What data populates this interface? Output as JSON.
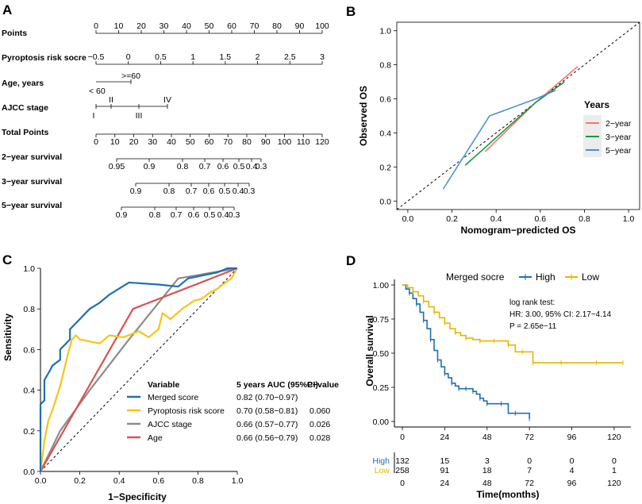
{
  "panels": {
    "a": "A",
    "b": "B",
    "c": "C",
    "d": "D"
  },
  "colors": {
    "red": "#f8766d",
    "green": "#1a9a3a",
    "blue": "#4a8fdb",
    "merged": "#1f6fb2",
    "pyro": "#f5c518",
    "ajcc": "#8c8c8c",
    "age": "#d9534f",
    "high": "#1f6fb2",
    "low": "#e8b500"
  },
  "nomogram": {
    "rows": {
      "points": {
        "label": "Points",
        "ticks": [
          "0",
          "10",
          "20",
          "30",
          "40",
          "50",
          "60",
          "70",
          "80",
          "90",
          "100"
        ]
      },
      "risk": {
        "label": "Pyroptosis risk socre",
        "ticks": [
          "−0.5",
          "0",
          "0.5",
          "1",
          "1.5",
          "2",
          "2.5",
          "3"
        ]
      },
      "age": {
        "label": "Age, years",
        "top": ">=60",
        "bottom": "< 60"
      },
      "ajcc": {
        "label": "AJCC stage",
        "top": [
          "II",
          "IV"
        ],
        "bottom": [
          "I",
          "III"
        ]
      },
      "total": {
        "label": "Total Points",
        "ticks": [
          "0",
          "10",
          "20",
          "30",
          "40",
          "50",
          "60",
          "70",
          "80",
          "90",
          "100",
          "110",
          "120"
        ]
      },
      "s2": {
        "label": "2−year survival",
        "ticks": [
          "0.95",
          "0.9",
          "0.8",
          "0.7",
          "0.6",
          "0.5",
          "0.4",
          "0.3"
        ]
      },
      "s3": {
        "label": "3−year survival",
        "ticks": [
          "0.9",
          "0.8",
          "0.7",
          "0.6",
          "0.5",
          "0.4",
          "0.3"
        ]
      },
      "s5": {
        "label": "5−year survival",
        "ticks": [
          "0.9",
          "0.8",
          "0.7",
          "0.6",
          "0.5",
          "0.4",
          "0.3"
        ]
      }
    }
  },
  "chart_data": [
    {
      "id": "B",
      "type": "line",
      "title": "",
      "xlabel": "Nomogram−predicted OS",
      "ylabel": "Observed OS",
      "xlim": [
        -0.05,
        1.05
      ],
      "ylim": [
        -0.05,
        1.05
      ],
      "xticks": [
        "0.0",
        "0.2",
        "0.4",
        "0.6",
        "0.8",
        "1.0"
      ],
      "yticks": [
        "0.0",
        "0.2",
        "0.4",
        "0.6",
        "0.8",
        "1.0"
      ],
      "legend_title": "Years",
      "series": [
        {
          "name": "2−year",
          "color_key": "red",
          "x": [
            0.35,
            0.58,
            0.77
          ],
          "y": [
            0.29,
            0.58,
            0.79
          ]
        },
        {
          "name": "3−year",
          "color_key": "green",
          "x": [
            0.26,
            0.58,
            0.71
          ],
          "y": [
            0.21,
            0.58,
            0.7
          ]
        },
        {
          "name": "5−year",
          "color_key": "blue",
          "x": [
            0.16,
            0.37,
            0.58,
            0.67
          ],
          "y": [
            0.07,
            0.5,
            0.6,
            0.65
          ]
        }
      ],
      "reference_line": "diagonal"
    },
    {
      "id": "C",
      "type": "line",
      "title": "",
      "xlabel": "1−Specificity",
      "ylabel": "Sensitivity",
      "xlim": [
        0,
        1
      ],
      "ylim": [
        0,
        1
      ],
      "xticks": [
        "0.0",
        "0.2",
        "0.4",
        "0.6",
        "0.8",
        "1.0"
      ],
      "yticks": [
        "0.0",
        "0.2",
        "0.4",
        "0.6",
        "0.8",
        "1.0"
      ],
      "table_headers": {
        "variable": "Variable",
        "auc": "5 years AUC (95%CI)",
        "p": "P−value"
      },
      "series": [
        {
          "name": "Merged score",
          "auc": "0.82 (0.70−0.97)",
          "p": "",
          "color_key": "merged",
          "x": [
            0,
            0,
            0.02,
            0.02,
            0.05,
            0.06,
            0.1,
            0.1,
            0.15,
            0.15,
            0.2,
            0.25,
            0.3,
            0.35,
            0.4,
            0.45,
            0.6,
            0.7,
            0.75,
            0.8,
            0.85,
            0.9,
            0.95,
            1
          ],
          "y": [
            0,
            0.33,
            0.35,
            0.45,
            0.5,
            0.52,
            0.55,
            0.6,
            0.65,
            0.7,
            0.75,
            0.8,
            0.83,
            0.87,
            0.9,
            0.93,
            0.92,
            0.91,
            0.95,
            0.96,
            0.97,
            0.98,
            1,
            1
          ]
        },
        {
          "name": "Pyroptosis risk score",
          "auc": "0.70 (0.58−0.81)",
          "p": "0.060",
          "color_key": "pyro",
          "x": [
            0,
            0.02,
            0.04,
            0.06,
            0.08,
            0.1,
            0.12,
            0.14,
            0.16,
            0.18,
            0.2,
            0.3,
            0.35,
            0.42,
            0.5,
            0.55,
            0.6,
            0.62,
            0.66,
            0.72,
            0.78,
            0.82,
            0.86,
            0.9,
            0.94,
            0.97,
            1
          ],
          "y": [
            0,
            0.15,
            0.25,
            0.3,
            0.36,
            0.42,
            0.5,
            0.58,
            0.65,
            0.67,
            0.65,
            0.63,
            0.67,
            0.66,
            0.69,
            0.66,
            0.7,
            0.78,
            0.75,
            0.8,
            0.84,
            0.85,
            0.88,
            0.9,
            0.93,
            0.95,
            1
          ]
        },
        {
          "name": "AJCC stage",
          "auc": "0.66 (0.57−0.77)",
          "p": "0.026",
          "color_key": "ajcc",
          "x": [
            0,
            0.1,
            0.25,
            0.45,
            0.7,
            1
          ],
          "y": [
            0,
            0.2,
            0.4,
            0.65,
            0.95,
            1
          ]
        },
        {
          "name": "Age",
          "auc": "0.66 (0.56−0.79)",
          "p": "0.028",
          "color_key": "age",
          "x": [
            0,
            0.47,
            1
          ],
          "y": [
            0,
            0.8,
            1
          ]
        }
      ],
      "reference_line": "diagonal"
    },
    {
      "id": "D",
      "type": "line",
      "title": "",
      "xlabel": "Time(months)",
      "ylabel": "Overall survival",
      "xlim": [
        0,
        125
      ],
      "ylim": [
        0,
        1
      ],
      "xticks": [
        "0",
        "24",
        "48",
        "72",
        "96",
        "120"
      ],
      "yticks": [
        "0.00",
        "0.25",
        "0.50",
        "0.75",
        "1.00"
      ],
      "legend_title": "Merged socre",
      "annotation": [
        "log rank test:",
        "HR: 3.00, 95% CI: 2.17−4.14",
        "P = 2.65e−11"
      ],
      "series": [
        {
          "name": "High",
          "color_key": "high",
          "x": [
            0,
            2,
            4,
            6,
            8,
            10,
            12,
            14,
            16,
            18,
            20,
            22,
            24,
            26,
            28,
            30,
            32,
            34,
            36,
            38,
            40,
            42,
            44,
            46,
            48,
            52,
            56,
            60,
            64,
            68,
            72
          ],
          "y": [
            1,
            0.97,
            0.94,
            0.9,
            0.86,
            0.8,
            0.74,
            0.68,
            0.6,
            0.52,
            0.45,
            0.4,
            0.35,
            0.32,
            0.28,
            0.26,
            0.24,
            0.24,
            0.24,
            0.24,
            0.22,
            0.2,
            0.17,
            0.15,
            0.13,
            0.13,
            0.13,
            0.06,
            0.06,
            0.06,
            0.02
          ]
        },
        {
          "name": "Low",
          "color_key": "low",
          "x": [
            0,
            3,
            6,
            9,
            12,
            15,
            18,
            21,
            24,
            27,
            30,
            33,
            36,
            40,
            44,
            48,
            52,
            56,
            60,
            64,
            68,
            72,
            74,
            80,
            90,
            100,
            110,
            120,
            125
          ],
          "y": [
            1,
            0.98,
            0.95,
            0.92,
            0.88,
            0.84,
            0.8,
            0.76,
            0.72,
            0.68,
            0.65,
            0.63,
            0.61,
            0.6,
            0.59,
            0.59,
            0.59,
            0.59,
            0.56,
            0.51,
            0.51,
            0.51,
            0.43,
            0.43,
            0.43,
            0.43,
            0.43,
            0.43,
            0.43
          ]
        }
      ],
      "risk_table": {
        "rows": [
          {
            "name": "High",
            "color_key": "high",
            "counts": [
              "132",
              "15",
              "3",
              "0",
              "0",
              "0"
            ]
          },
          {
            "name": "Low",
            "color_key": "low",
            "counts": [
              "258",
              "91",
              "18",
              "7",
              "4",
              "1"
            ]
          }
        ],
        "xticks": [
          "0",
          "24",
          "48",
          "72",
          "96",
          "120"
        ]
      }
    }
  ]
}
